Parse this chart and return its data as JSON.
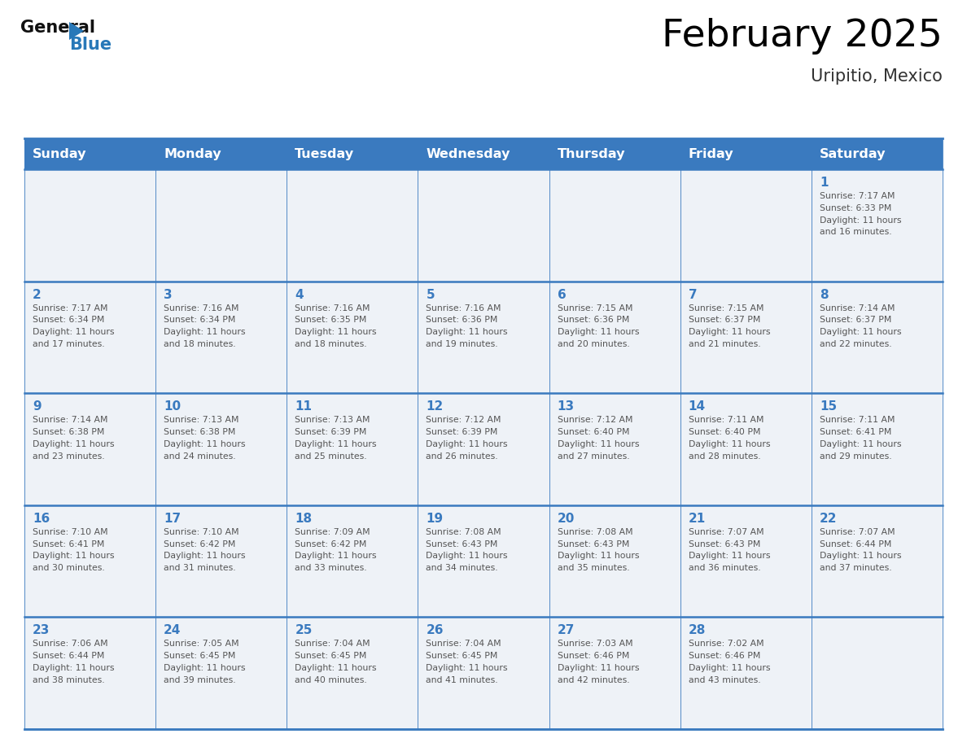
{
  "title": "February 2025",
  "subtitle": "Uripitio, Mexico",
  "days_of_week": [
    "Sunday",
    "Monday",
    "Tuesday",
    "Wednesday",
    "Thursday",
    "Friday",
    "Saturday"
  ],
  "header_bg": "#3a7abf",
  "header_text": "#ffffff",
  "cell_bg_light": "#eef2f7",
  "grid_line_color": "#3a7abf",
  "day_num_color": "#3a7abf",
  "text_color": "#555555",
  "title_color": "#000000",
  "subtitle_color": "#333333",
  "logo_general_color": "#111111",
  "logo_blue_color": "#2878b8",
  "weeks": [
    [
      {
        "day": null,
        "sunrise": null,
        "sunset": null,
        "daylight": null
      },
      {
        "day": null,
        "sunrise": null,
        "sunset": null,
        "daylight": null
      },
      {
        "day": null,
        "sunrise": null,
        "sunset": null,
        "daylight": null
      },
      {
        "day": null,
        "sunrise": null,
        "sunset": null,
        "daylight": null
      },
      {
        "day": null,
        "sunrise": null,
        "sunset": null,
        "daylight": null
      },
      {
        "day": null,
        "sunrise": null,
        "sunset": null,
        "daylight": null
      },
      {
        "day": 1,
        "sunrise": "7:17 AM",
        "sunset": "6:33 PM",
        "daylight": "11 hours and 16 minutes."
      }
    ],
    [
      {
        "day": 2,
        "sunrise": "7:17 AM",
        "sunset": "6:34 PM",
        "daylight": "11 hours and 17 minutes."
      },
      {
        "day": 3,
        "sunrise": "7:16 AM",
        "sunset": "6:34 PM",
        "daylight": "11 hours and 18 minutes."
      },
      {
        "day": 4,
        "sunrise": "7:16 AM",
        "sunset": "6:35 PM",
        "daylight": "11 hours and 18 minutes."
      },
      {
        "day": 5,
        "sunrise": "7:16 AM",
        "sunset": "6:36 PM",
        "daylight": "11 hours and 19 minutes."
      },
      {
        "day": 6,
        "sunrise": "7:15 AM",
        "sunset": "6:36 PM",
        "daylight": "11 hours and 20 minutes."
      },
      {
        "day": 7,
        "sunrise": "7:15 AM",
        "sunset": "6:37 PM",
        "daylight": "11 hours and 21 minutes."
      },
      {
        "day": 8,
        "sunrise": "7:14 AM",
        "sunset": "6:37 PM",
        "daylight": "11 hours and 22 minutes."
      }
    ],
    [
      {
        "day": 9,
        "sunrise": "7:14 AM",
        "sunset": "6:38 PM",
        "daylight": "11 hours and 23 minutes."
      },
      {
        "day": 10,
        "sunrise": "7:13 AM",
        "sunset": "6:38 PM",
        "daylight": "11 hours and 24 minutes."
      },
      {
        "day": 11,
        "sunrise": "7:13 AM",
        "sunset": "6:39 PM",
        "daylight": "11 hours and 25 minutes."
      },
      {
        "day": 12,
        "sunrise": "7:12 AM",
        "sunset": "6:39 PM",
        "daylight": "11 hours and 26 minutes."
      },
      {
        "day": 13,
        "sunrise": "7:12 AM",
        "sunset": "6:40 PM",
        "daylight": "11 hours and 27 minutes."
      },
      {
        "day": 14,
        "sunrise": "7:11 AM",
        "sunset": "6:40 PM",
        "daylight": "11 hours and 28 minutes."
      },
      {
        "day": 15,
        "sunrise": "7:11 AM",
        "sunset": "6:41 PM",
        "daylight": "11 hours and 29 minutes."
      }
    ],
    [
      {
        "day": 16,
        "sunrise": "7:10 AM",
        "sunset": "6:41 PM",
        "daylight": "11 hours and 30 minutes."
      },
      {
        "day": 17,
        "sunrise": "7:10 AM",
        "sunset": "6:42 PM",
        "daylight": "11 hours and 31 minutes."
      },
      {
        "day": 18,
        "sunrise": "7:09 AM",
        "sunset": "6:42 PM",
        "daylight": "11 hours and 33 minutes."
      },
      {
        "day": 19,
        "sunrise": "7:08 AM",
        "sunset": "6:43 PM",
        "daylight": "11 hours and 34 minutes."
      },
      {
        "day": 20,
        "sunrise": "7:08 AM",
        "sunset": "6:43 PM",
        "daylight": "11 hours and 35 minutes."
      },
      {
        "day": 21,
        "sunrise": "7:07 AM",
        "sunset": "6:43 PM",
        "daylight": "11 hours and 36 minutes."
      },
      {
        "day": 22,
        "sunrise": "7:07 AM",
        "sunset": "6:44 PM",
        "daylight": "11 hours and 37 minutes."
      }
    ],
    [
      {
        "day": 23,
        "sunrise": "7:06 AM",
        "sunset": "6:44 PM",
        "daylight": "11 hours and 38 minutes."
      },
      {
        "day": 24,
        "sunrise": "7:05 AM",
        "sunset": "6:45 PM",
        "daylight": "11 hours and 39 minutes."
      },
      {
        "day": 25,
        "sunrise": "7:04 AM",
        "sunset": "6:45 PM",
        "daylight": "11 hours and 40 minutes."
      },
      {
        "day": 26,
        "sunrise": "7:04 AM",
        "sunset": "6:45 PM",
        "daylight": "11 hours and 41 minutes."
      },
      {
        "day": 27,
        "sunrise": "7:03 AM",
        "sunset": "6:46 PM",
        "daylight": "11 hours and 42 minutes."
      },
      {
        "day": 28,
        "sunrise": "7:02 AM",
        "sunset": "6:46 PM",
        "daylight": "11 hours and 43 minutes."
      },
      {
        "day": null,
        "sunrise": null,
        "sunset": null,
        "daylight": null
      }
    ]
  ]
}
